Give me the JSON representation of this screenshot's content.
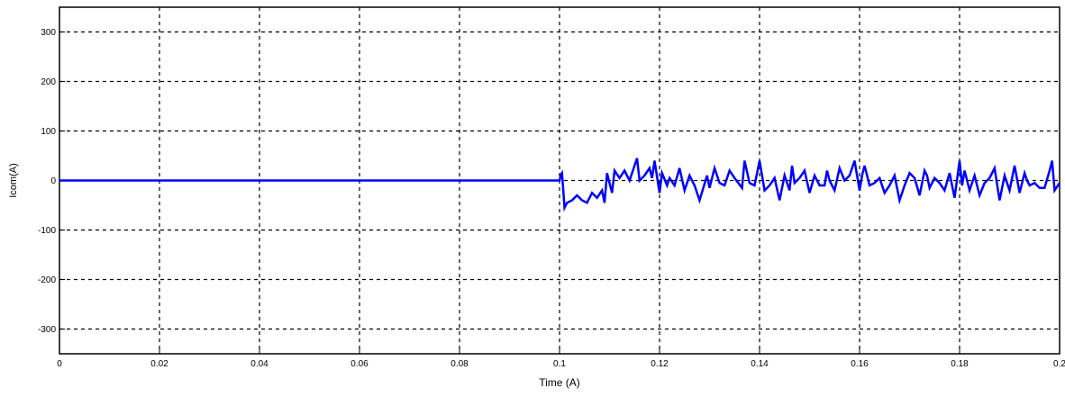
{
  "chart_data": {
    "type": "line",
    "title": "",
    "xlabel": "Time (A)",
    "ylabel": "Icom(A)",
    "xlim": [
      0,
      0.2
    ],
    "ylim": [
      -350,
      350
    ],
    "grid": true,
    "line_color": "#0000ff",
    "x_ticks": [
      0,
      0.02,
      0.04,
      0.06,
      0.08,
      0.1,
      0.12,
      0.14,
      0.16,
      0.18,
      0.2
    ],
    "x_tick_labels": [
      "0",
      "0.02",
      "0.04",
      "0.06",
      "0.08",
      "0.1",
      "0.12",
      "0.14",
      "0.16",
      "0.18",
      "0.2"
    ],
    "y_ticks": [
      300,
      200,
      100,
      0,
      -100,
      -200,
      -300
    ],
    "y_tick_labels": [
      "300",
      "200",
      "100",
      "0",
      "-100",
      "-200",
      "-300"
    ],
    "series": [
      {
        "x": [
          0,
          0.1,
          0.1003,
          0.1005,
          0.101,
          0.1015,
          0.1025,
          0.1035,
          0.1045,
          0.1055,
          0.1065,
          0.1075,
          0.1085,
          0.109,
          0.1095,
          0.1105,
          0.111,
          0.112,
          0.113,
          0.114,
          0.115,
          0.1155,
          0.116,
          0.117,
          0.118,
          0.1185,
          0.119,
          0.12,
          0.1205,
          0.1215,
          0.122,
          0.123,
          0.124,
          0.125,
          0.126,
          0.127,
          0.128,
          0.1295,
          0.13,
          0.131,
          0.132,
          0.133,
          0.134,
          0.135,
          0.1365,
          0.137,
          0.138,
          0.139,
          0.14,
          0.1405,
          0.141,
          0.142,
          0.143,
          0.144,
          0.145,
          0.146,
          0.1465,
          0.147,
          0.148,
          0.149,
          0.15,
          0.151,
          0.152,
          0.153,
          0.1535,
          0.154,
          0.155,
          0.156,
          0.157,
          0.158,
          0.159,
          0.16,
          0.1605,
          0.161,
          0.162,
          0.163,
          0.164,
          0.165,
          0.166,
          0.167,
          0.168,
          0.169,
          0.17,
          0.171,
          0.172,
          0.173,
          0.1735,
          0.174,
          0.175,
          0.176,
          0.177,
          0.178,
          0.179,
          0.18,
          0.1805,
          0.181,
          0.182,
          0.183,
          0.184,
          0.185,
          0.186,
          0.187,
          0.188,
          0.189,
          0.19,
          0.191,
          0.192,
          0.193,
          0.1935,
          0.194,
          0.195,
          0.196,
          0.197,
          0.198,
          0.1985,
          0.199,
          0.2
        ],
        "y": [
          0,
          0,
          12,
          15,
          -55,
          -45,
          -40,
          -30,
          -40,
          -45,
          -25,
          -35,
          -20,
          -45,
          15,
          -25,
          20,
          5,
          20,
          0,
          30,
          45,
          0,
          10,
          25,
          5,
          40,
          -25,
          15,
          -10,
          5,
          -10,
          25,
          -20,
          10,
          -10,
          -40,
          10,
          -15,
          25,
          -5,
          -10,
          20,
          5,
          -15,
          40,
          -5,
          -10,
          40,
          10,
          -20,
          -10,
          5,
          -40,
          10,
          -20,
          30,
          -5,
          5,
          20,
          -25,
          10,
          -10,
          -10,
          20,
          0,
          -20,
          25,
          0,
          10,
          40,
          -20,
          10,
          30,
          -10,
          -5,
          5,
          -25,
          -10,
          10,
          -40,
          -10,
          15,
          5,
          -30,
          20,
          10,
          -15,
          5,
          -5,
          -20,
          15,
          -35,
          40,
          -10,
          20,
          -20,
          10,
          -30,
          -5,
          5,
          25,
          -40,
          10,
          -20,
          30,
          -25,
          15,
          0,
          -10,
          -5,
          -15,
          -15,
          20,
          40,
          -20,
          -5
        ]
      }
    ]
  }
}
